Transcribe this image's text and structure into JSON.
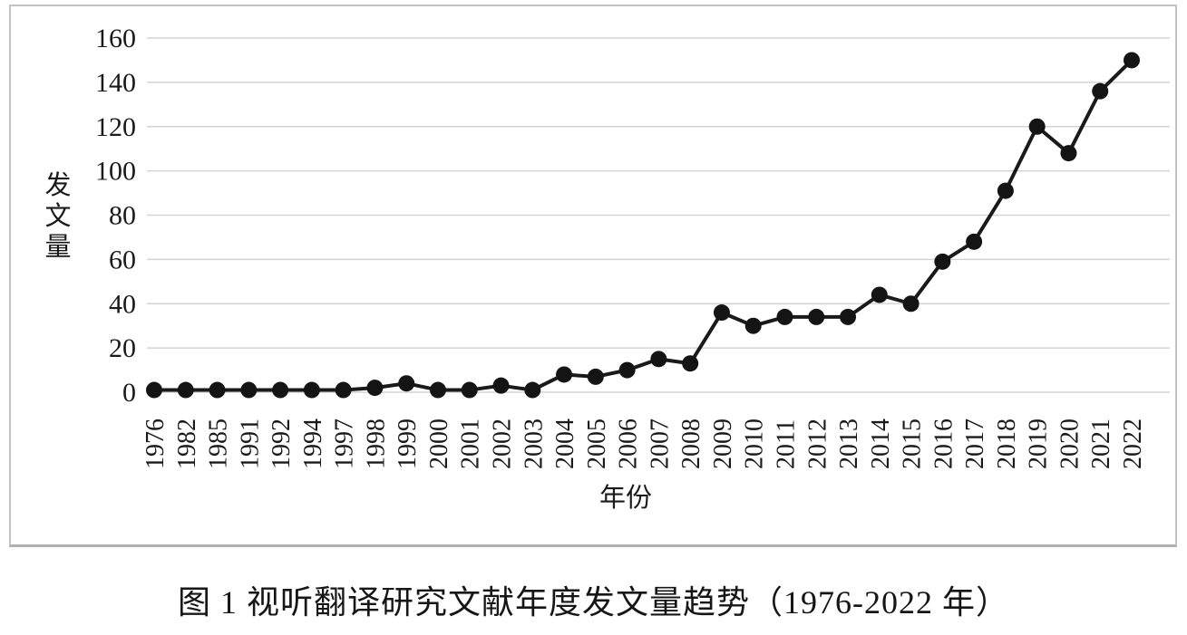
{
  "figure": {
    "caption": "图 1 视听翻译研究文献年度发文量趋势（1976-2022 年）"
  },
  "chart_data": {
    "type": "line",
    "title": "",
    "xlabel": "年份",
    "ylabel": "发文量",
    "categories": [
      "1976",
      "1982",
      "1985",
      "1991",
      "1992",
      "1994",
      "1997",
      "1998",
      "1999",
      "2000",
      "2001",
      "2002",
      "2003",
      "2004",
      "2005",
      "2006",
      "2007",
      "2008",
      "2009",
      "2010",
      "2011",
      "2012",
      "2013",
      "2014",
      "2015",
      "2016",
      "2017",
      "2018",
      "2019",
      "2020",
      "2021",
      "2022"
    ],
    "values": [
      1,
      1,
      1,
      1,
      1,
      1,
      1,
      2,
      4,
      1,
      1,
      3,
      1,
      8,
      7,
      10,
      15,
      13,
      36,
      30,
      34,
      34,
      34,
      44,
      40,
      59,
      68,
      91,
      120,
      108,
      136,
      150
    ],
    "ylim": [
      0,
      160
    ],
    "ytick_step": 20,
    "grid": true,
    "legend": "none",
    "colors": {
      "line": "#1a1a1a",
      "marker": "#141414",
      "grid": "#d4d4d4",
      "text": "#1a1a1a",
      "frame_border": "#c3c3c3"
    }
  }
}
